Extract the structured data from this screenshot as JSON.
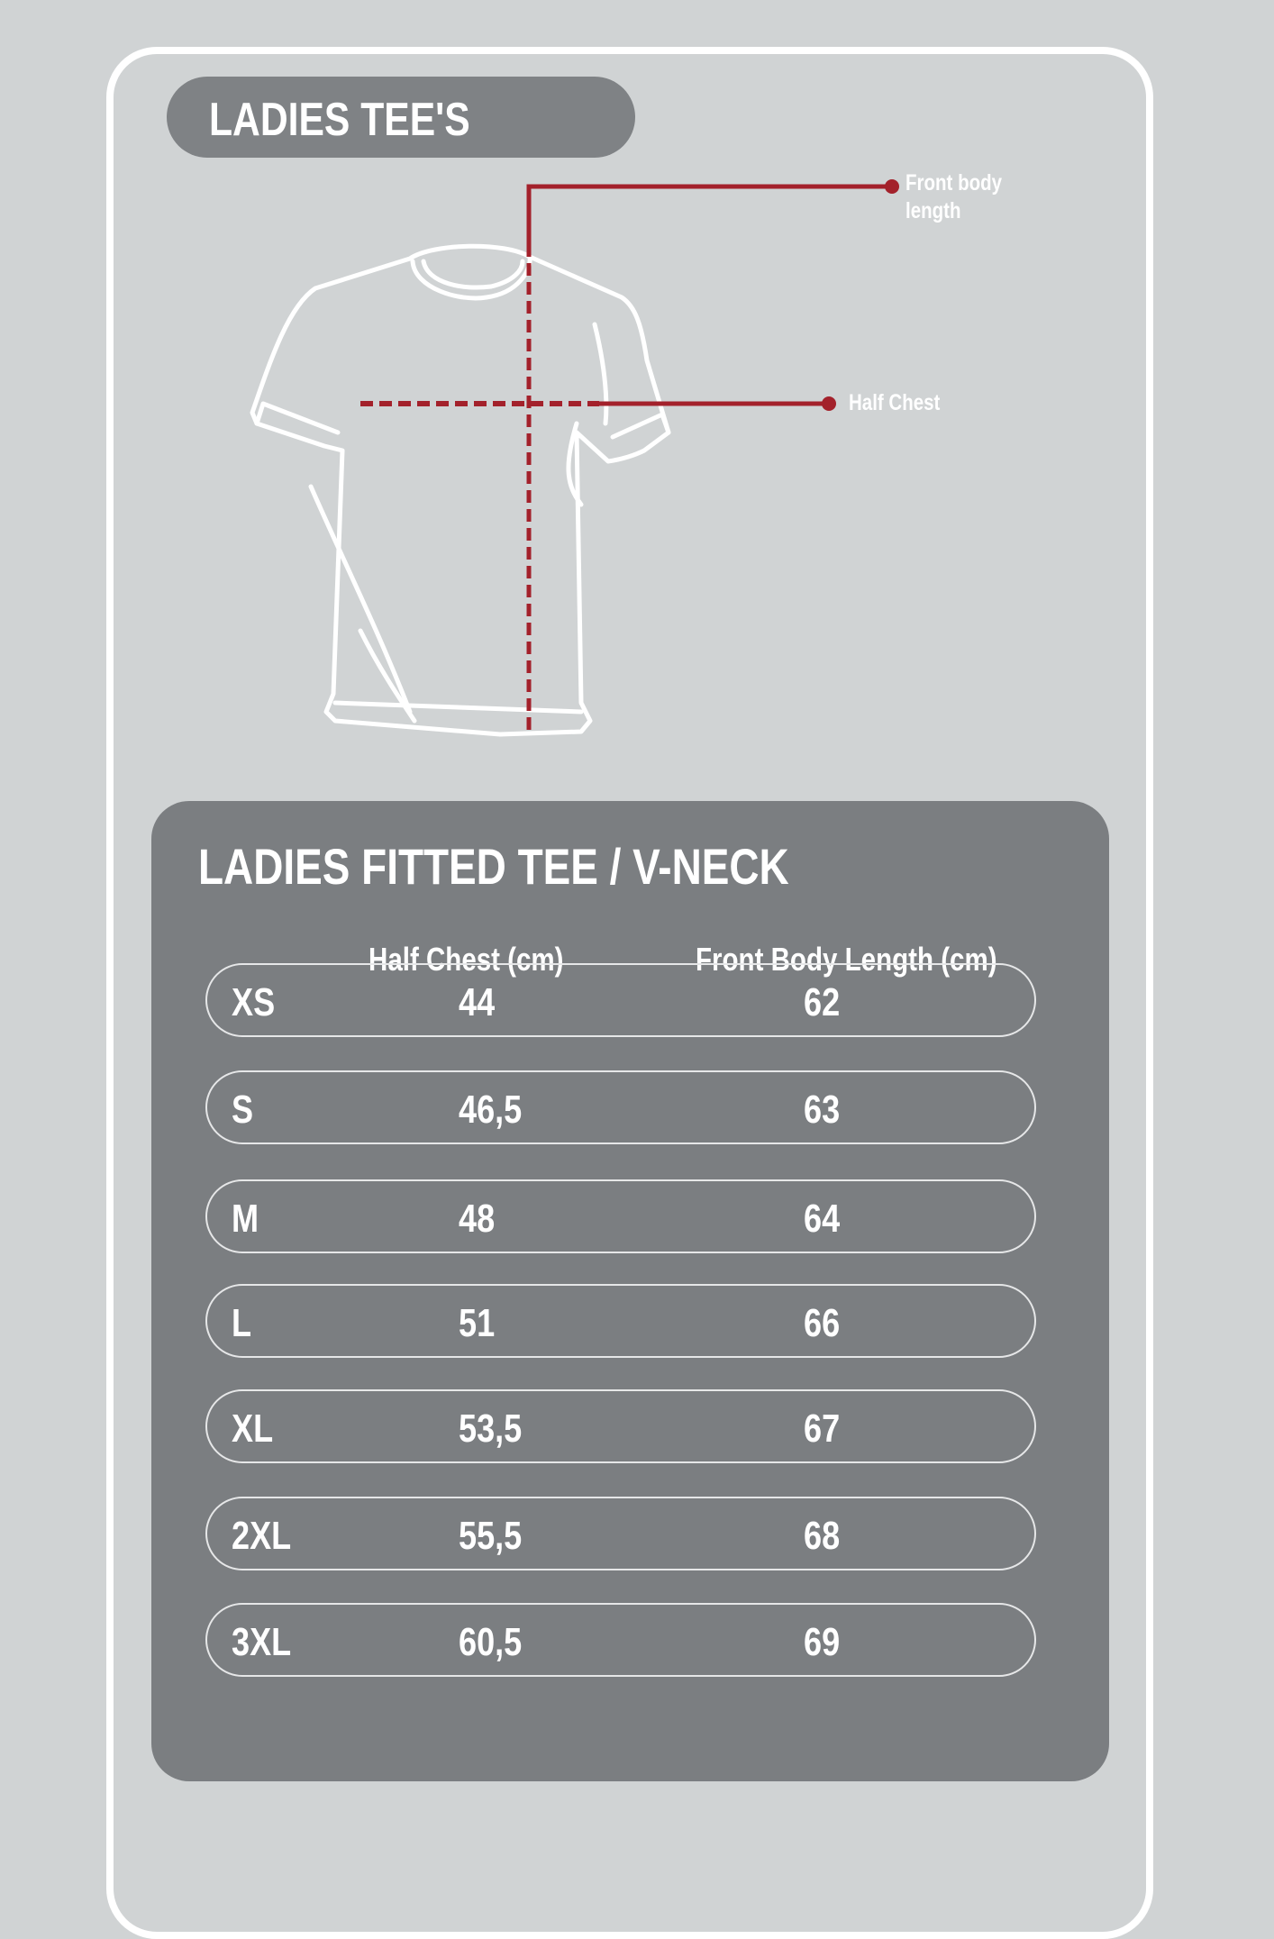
{
  "header": {
    "title": "LADIES TEE'S"
  },
  "diagram": {
    "front_body_length_label_line1": "Front body",
    "front_body_length_label_line2": "length",
    "half_chest_label": "Half Chest",
    "accent_color": "#a3212b",
    "icon": "t-shirt-outline"
  },
  "table": {
    "title": "LADIES FITTED TEE / V-NECK",
    "columns": [
      "",
      "Half Chest (cm)",
      "Front Body Length (cm)"
    ],
    "rows": [
      {
        "size": "XS",
        "half_chest": "44",
        "length": "62"
      },
      {
        "size": "S",
        "half_chest": "46,5",
        "length": "63"
      },
      {
        "size": "M",
        "half_chest": "48",
        "length": "64"
      },
      {
        "size": "L",
        "half_chest": "51",
        "length": "66"
      },
      {
        "size": "XL",
        "half_chest": "53,5",
        "length": "67"
      },
      {
        "size": "2XL",
        "half_chest": "55,5",
        "length": "68"
      },
      {
        "size": "3XL",
        "half_chest": "60,5",
        "length": "69"
      }
    ]
  }
}
